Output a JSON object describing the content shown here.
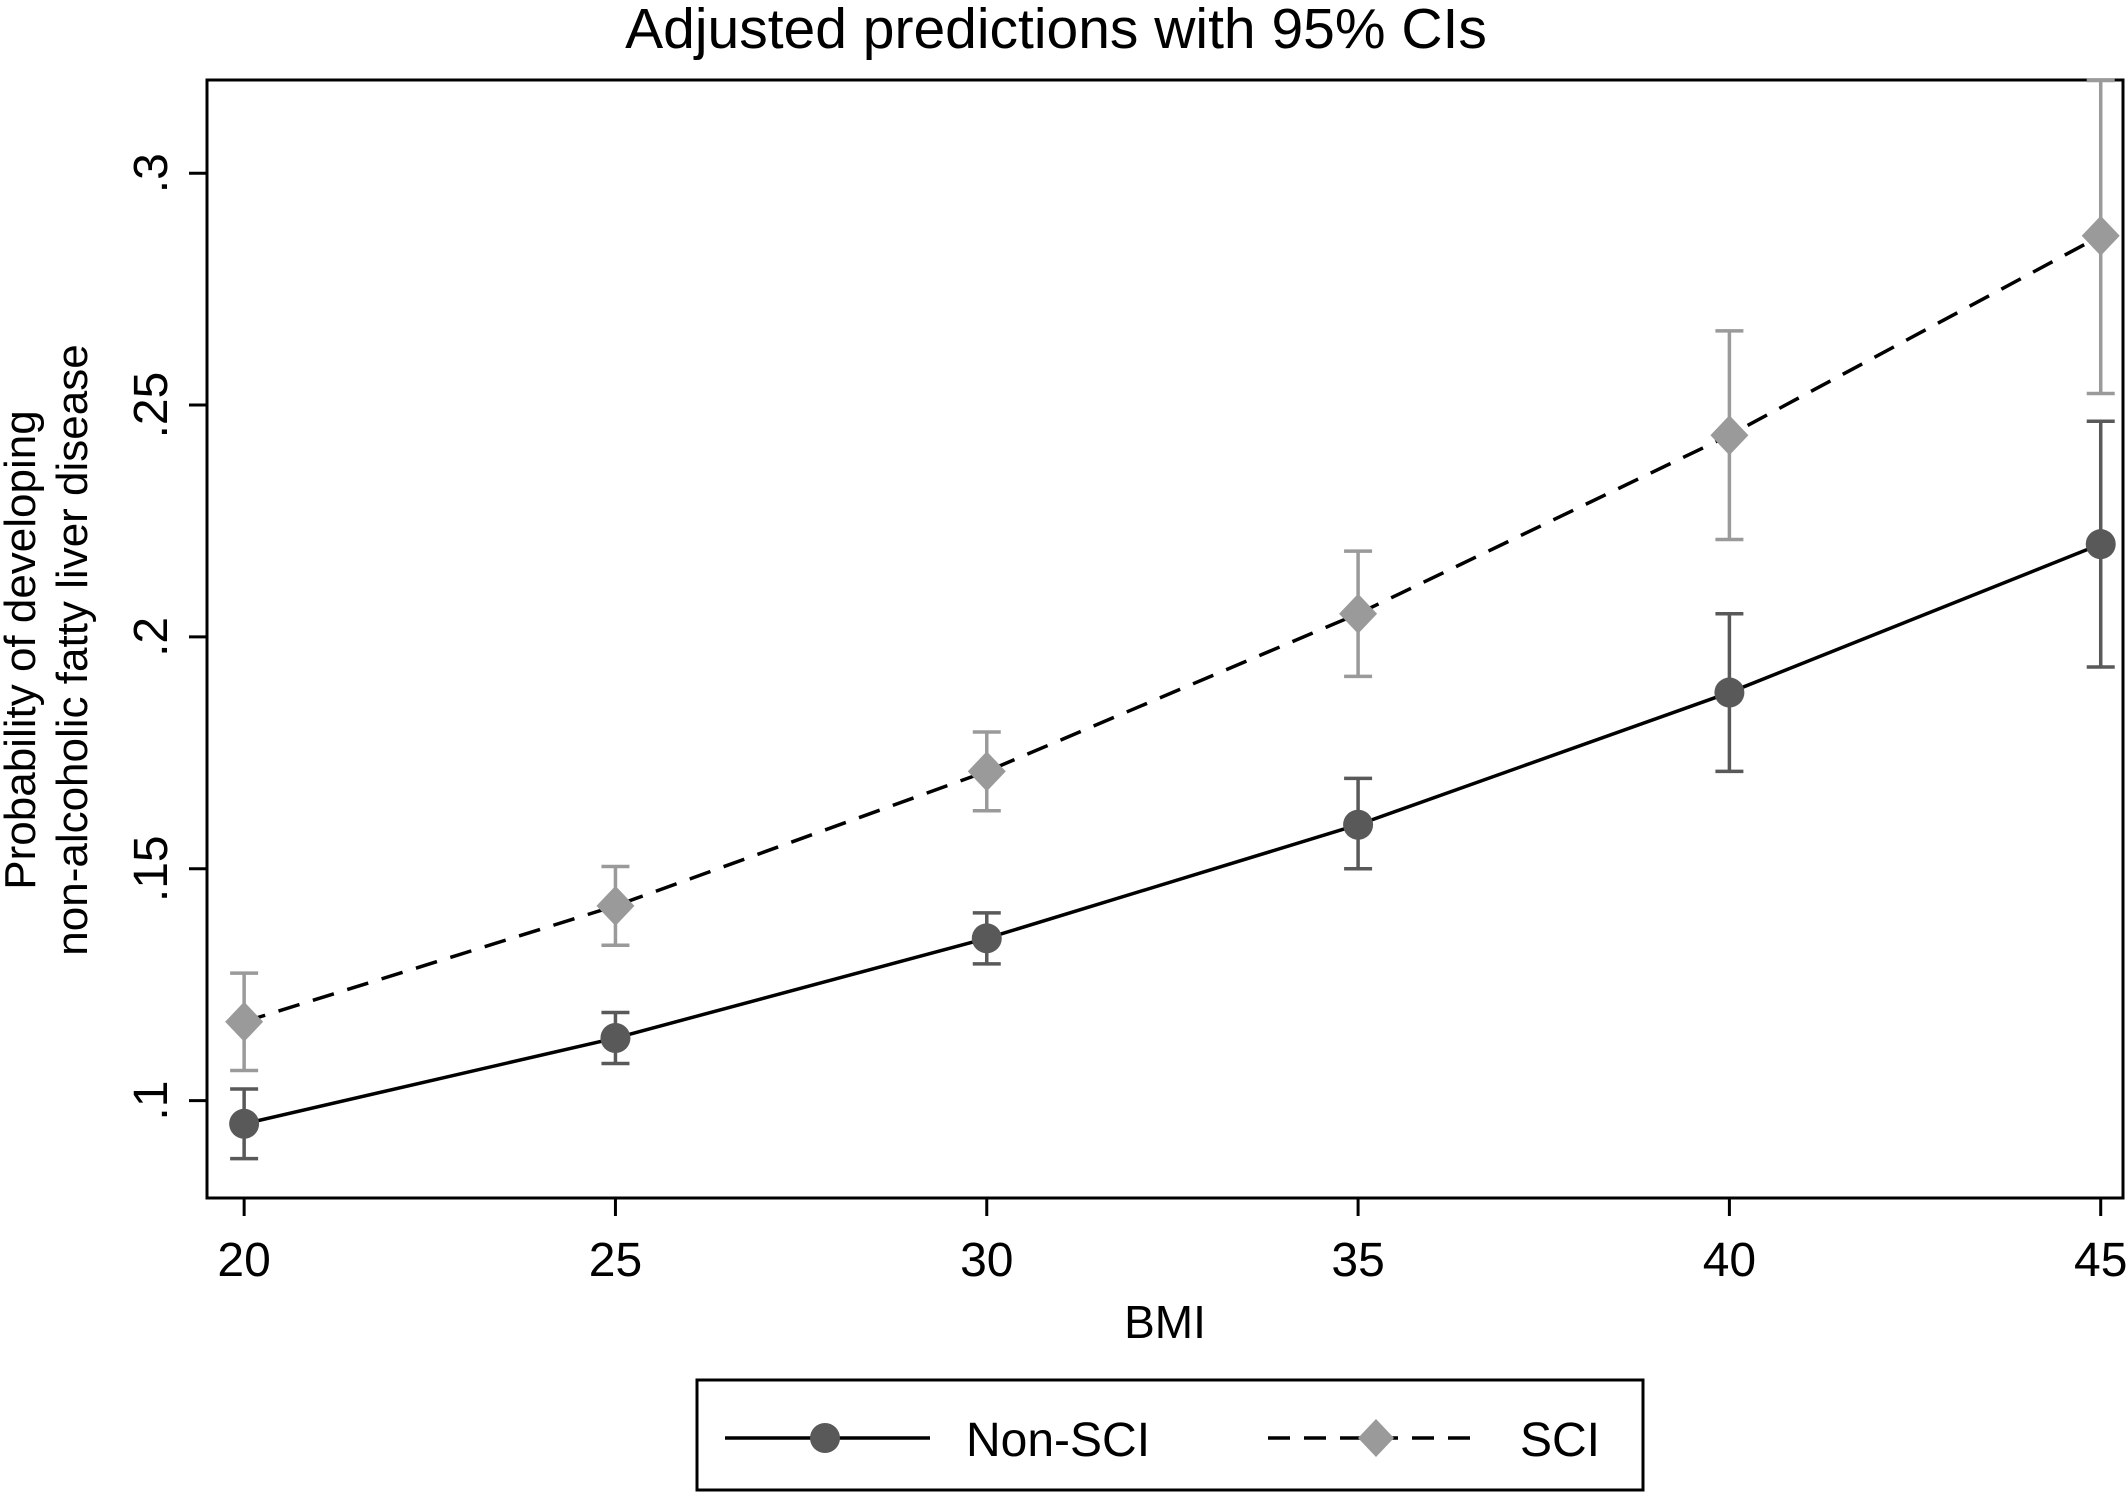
{
  "chart_data": {
    "type": "line",
    "title": "Adjusted predictions with 95% CIs",
    "xlabel": "BMI",
    "ylabel_lines": [
      "Probability of developing",
      "non-alcoholic fatty liver disease"
    ],
    "x": [
      20,
      25,
      30,
      35,
      40,
      45
    ],
    "x_ticks": [
      20,
      25,
      30,
      35,
      40,
      45
    ],
    "y_ticks": [
      {
        "value": 0.1,
        "label": ".1"
      },
      {
        "value": 0.15,
        "label": ".15"
      },
      {
        "value": 0.2,
        "label": ".2"
      },
      {
        "value": 0.25,
        "label": ".25"
      },
      {
        "value": 0.3,
        "label": ".3"
      }
    ],
    "xlim": [
      19.5,
      45.3
    ],
    "ylim": [
      0.079,
      0.3201
    ],
    "grid": false,
    "legend_placement": "bottom",
    "series": [
      {
        "name": "Non-SCI",
        "marker": "circle",
        "line_style": "solid",
        "line_color": "#000000",
        "marker_color": "#595959",
        "ci_color": "#595959",
        "values": [
          0.095,
          0.1135,
          0.135,
          0.1595,
          0.188,
          0.22
        ],
        "ci_low": [
          0.0875,
          0.108,
          0.1295,
          0.15,
          0.171,
          0.1935
        ],
        "ci_high": [
          0.1025,
          0.119,
          0.1405,
          0.1695,
          0.205,
          0.2465
        ]
      },
      {
        "name": "SCI",
        "marker": "diamond",
        "line_style": "dashed",
        "line_color": "#000000",
        "marker_color": "#9a9a9a",
        "ci_color": "#9a9a9a",
        "values": [
          0.117,
          0.142,
          0.171,
          0.205,
          0.2435,
          0.2865
        ],
        "ci_low": [
          0.1065,
          0.1335,
          0.1625,
          0.1915,
          0.221,
          0.2525
        ],
        "ci_high": [
          0.1275,
          0.1505,
          0.1795,
          0.2185,
          0.266,
          0.32
        ]
      }
    ]
  }
}
